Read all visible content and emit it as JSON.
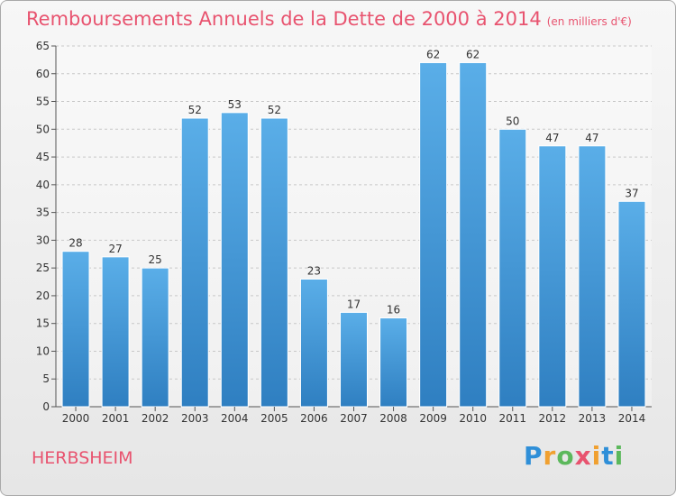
{
  "chart_data": {
    "type": "bar",
    "title": "Remboursements Annuels de la Dette de 2000 à 2014",
    "subtitle": "(en milliers d'€)",
    "categories": [
      "2000",
      "2001",
      "2002",
      "2003",
      "2004",
      "2005",
      "2006",
      "2007",
      "2008",
      "2009",
      "2010",
      "2011",
      "2012",
      "2013",
      "2014"
    ],
    "values": [
      28,
      27,
      25,
      52,
      53,
      52,
      23,
      17,
      16,
      62,
      62,
      50,
      47,
      47,
      37
    ],
    "ylim": [
      0,
      65
    ],
    "yticks": [
      0,
      5,
      10,
      15,
      20,
      25,
      30,
      35,
      40,
      45,
      50,
      55,
      60,
      65
    ],
    "grid": true,
    "bar_color": "#4a9fdc"
  },
  "location": "HERBSHEIM",
  "logo": {
    "text": "Proxiti",
    "letters": [
      "P",
      "r",
      "o",
      "x",
      "i",
      "t",
      "i"
    ],
    "colors": [
      "#2f8fd8",
      "#f0a030",
      "#5cb85c",
      "#e8536f",
      "#f0a030",
      "#2f8fd8",
      "#5cb85c"
    ]
  }
}
